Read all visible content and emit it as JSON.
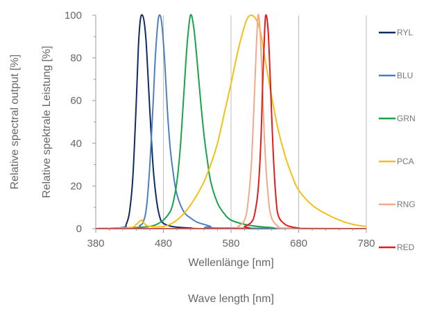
{
  "chart_data": {
    "type": "line",
    "title": "",
    "xlabel": "Wellenlänge [nm]",
    "xlabel_alt": "Wave length [nm]",
    "ylabel": "Relative spektrale Leistung [%]",
    "ylabel_alt": "Relative spectral output [%]",
    "xlim": [
      380,
      780
    ],
    "ylim": [
      0,
      100
    ],
    "x_ticks": [
      "380",
      "480",
      "580",
      "680",
      "780"
    ],
    "y_ticks": [
      "0",
      "20",
      "40",
      "60",
      "80",
      "100"
    ],
    "grid": "vertical",
    "legend_position": "right",
    "series": [
      {
        "name": "RYL",
        "color": "#0d2a66",
        "x": [
          380,
          420,
          425,
          430,
          435,
          440,
          443,
          446,
          449,
          452,
          455,
          460,
          465,
          470,
          475,
          480,
          490,
          500,
          520,
          550,
          780
        ],
        "y": [
          0,
          0.5,
          2,
          8,
          25,
          60,
          85,
          98,
          100,
          96,
          85,
          55,
          28,
          13,
          5,
          2.5,
          1.2,
          0.7,
          0.3,
          0,
          0
        ]
      },
      {
        "name": "BLU",
        "color": "#4d7ec2",
        "x": [
          380,
          440,
          445,
          450,
          455,
          460,
          465,
          468,
          472,
          475,
          478,
          482,
          486,
          490,
          495,
          500,
          510,
          520,
          530,
          540,
          550,
          560,
          780
        ],
        "y": [
          0,
          0.5,
          1.5,
          3,
          10,
          30,
          60,
          80,
          97,
          100,
          95,
          78,
          55,
          38,
          25,
          16,
          8,
          5,
          3,
          2,
          1,
          0.3,
          0
        ]
      },
      {
        "name": "GRN",
        "color": "#16a34a",
        "x": [
          380,
          440,
          460,
          470,
          480,
          490,
          495,
          500,
          505,
          510,
          515,
          520,
          525,
          530,
          535,
          540,
          545,
          550,
          560,
          570,
          580,
          600,
          620,
          640,
          660,
          780
        ],
        "y": [
          0,
          0.5,
          1,
          2,
          4,
          8,
          13,
          22,
          38,
          62,
          86,
          100,
          94,
          78,
          60,
          44,
          32,
          22,
          12,
          7,
          4,
          2,
          1,
          0.5,
          0,
          0
        ]
      },
      {
        "name": "PCA",
        "color": "#f5bf14",
        "x": [
          380,
          430,
          440,
          445,
          448,
          450,
          455,
          460,
          470,
          480,
          490,
          500,
          510,
          520,
          530,
          540,
          550,
          560,
          570,
          580,
          590,
          600,
          605,
          610,
          615,
          620,
          625,
          630,
          640,
          650,
          660,
          670,
          680,
          700,
          720,
          740,
          760,
          780
        ],
        "y": [
          0,
          0.5,
          2,
          3.5,
          4,
          3,
          1.5,
          1,
          0.8,
          1,
          2,
          4,
          7,
          11,
          16,
          22,
          30,
          40,
          54,
          68,
          83,
          95,
          99,
          100,
          99,
          96,
          90,
          80,
          62,
          46,
          34,
          25,
          18,
          11,
          7,
          4,
          2,
          1
        ]
      },
      {
        "name": "RNG",
        "color": "#f2a88a",
        "x": [
          380,
          580,
          590,
          600,
          605,
          610,
          614,
          617,
          620,
          623,
          626,
          630,
          635,
          640,
          650,
          660,
          780
        ],
        "y": [
          0,
          0,
          1,
          4,
          12,
          30,
          58,
          82,
          100,
          92,
          70,
          38,
          15,
          5,
          1,
          0,
          0
        ]
      },
      {
        "name": "RED",
        "color": "#e51b1b",
        "x": [
          380,
          590,
          600,
          610,
          615,
          620,
          624,
          627,
          630,
          632,
          635,
          638,
          642,
          646,
          650,
          660,
          670,
          680,
          690,
          780
        ],
        "y": [
          0,
          0,
          1,
          3,
          7,
          18,
          40,
          70,
          95,
          100,
          92,
          70,
          38,
          16,
          6,
          2,
          0.8,
          0.3,
          0,
          0
        ]
      }
    ]
  }
}
